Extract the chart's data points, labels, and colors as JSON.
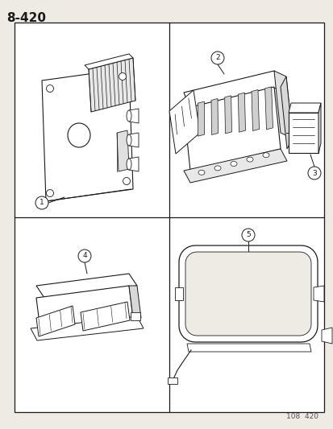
{
  "title": "8-420",
  "footer": "108  420",
  "bg_color": "#eeebe5",
  "line_color": "#1a1a1a",
  "fig_width": 4.14,
  "fig_height": 5.33,
  "dpi": 100
}
